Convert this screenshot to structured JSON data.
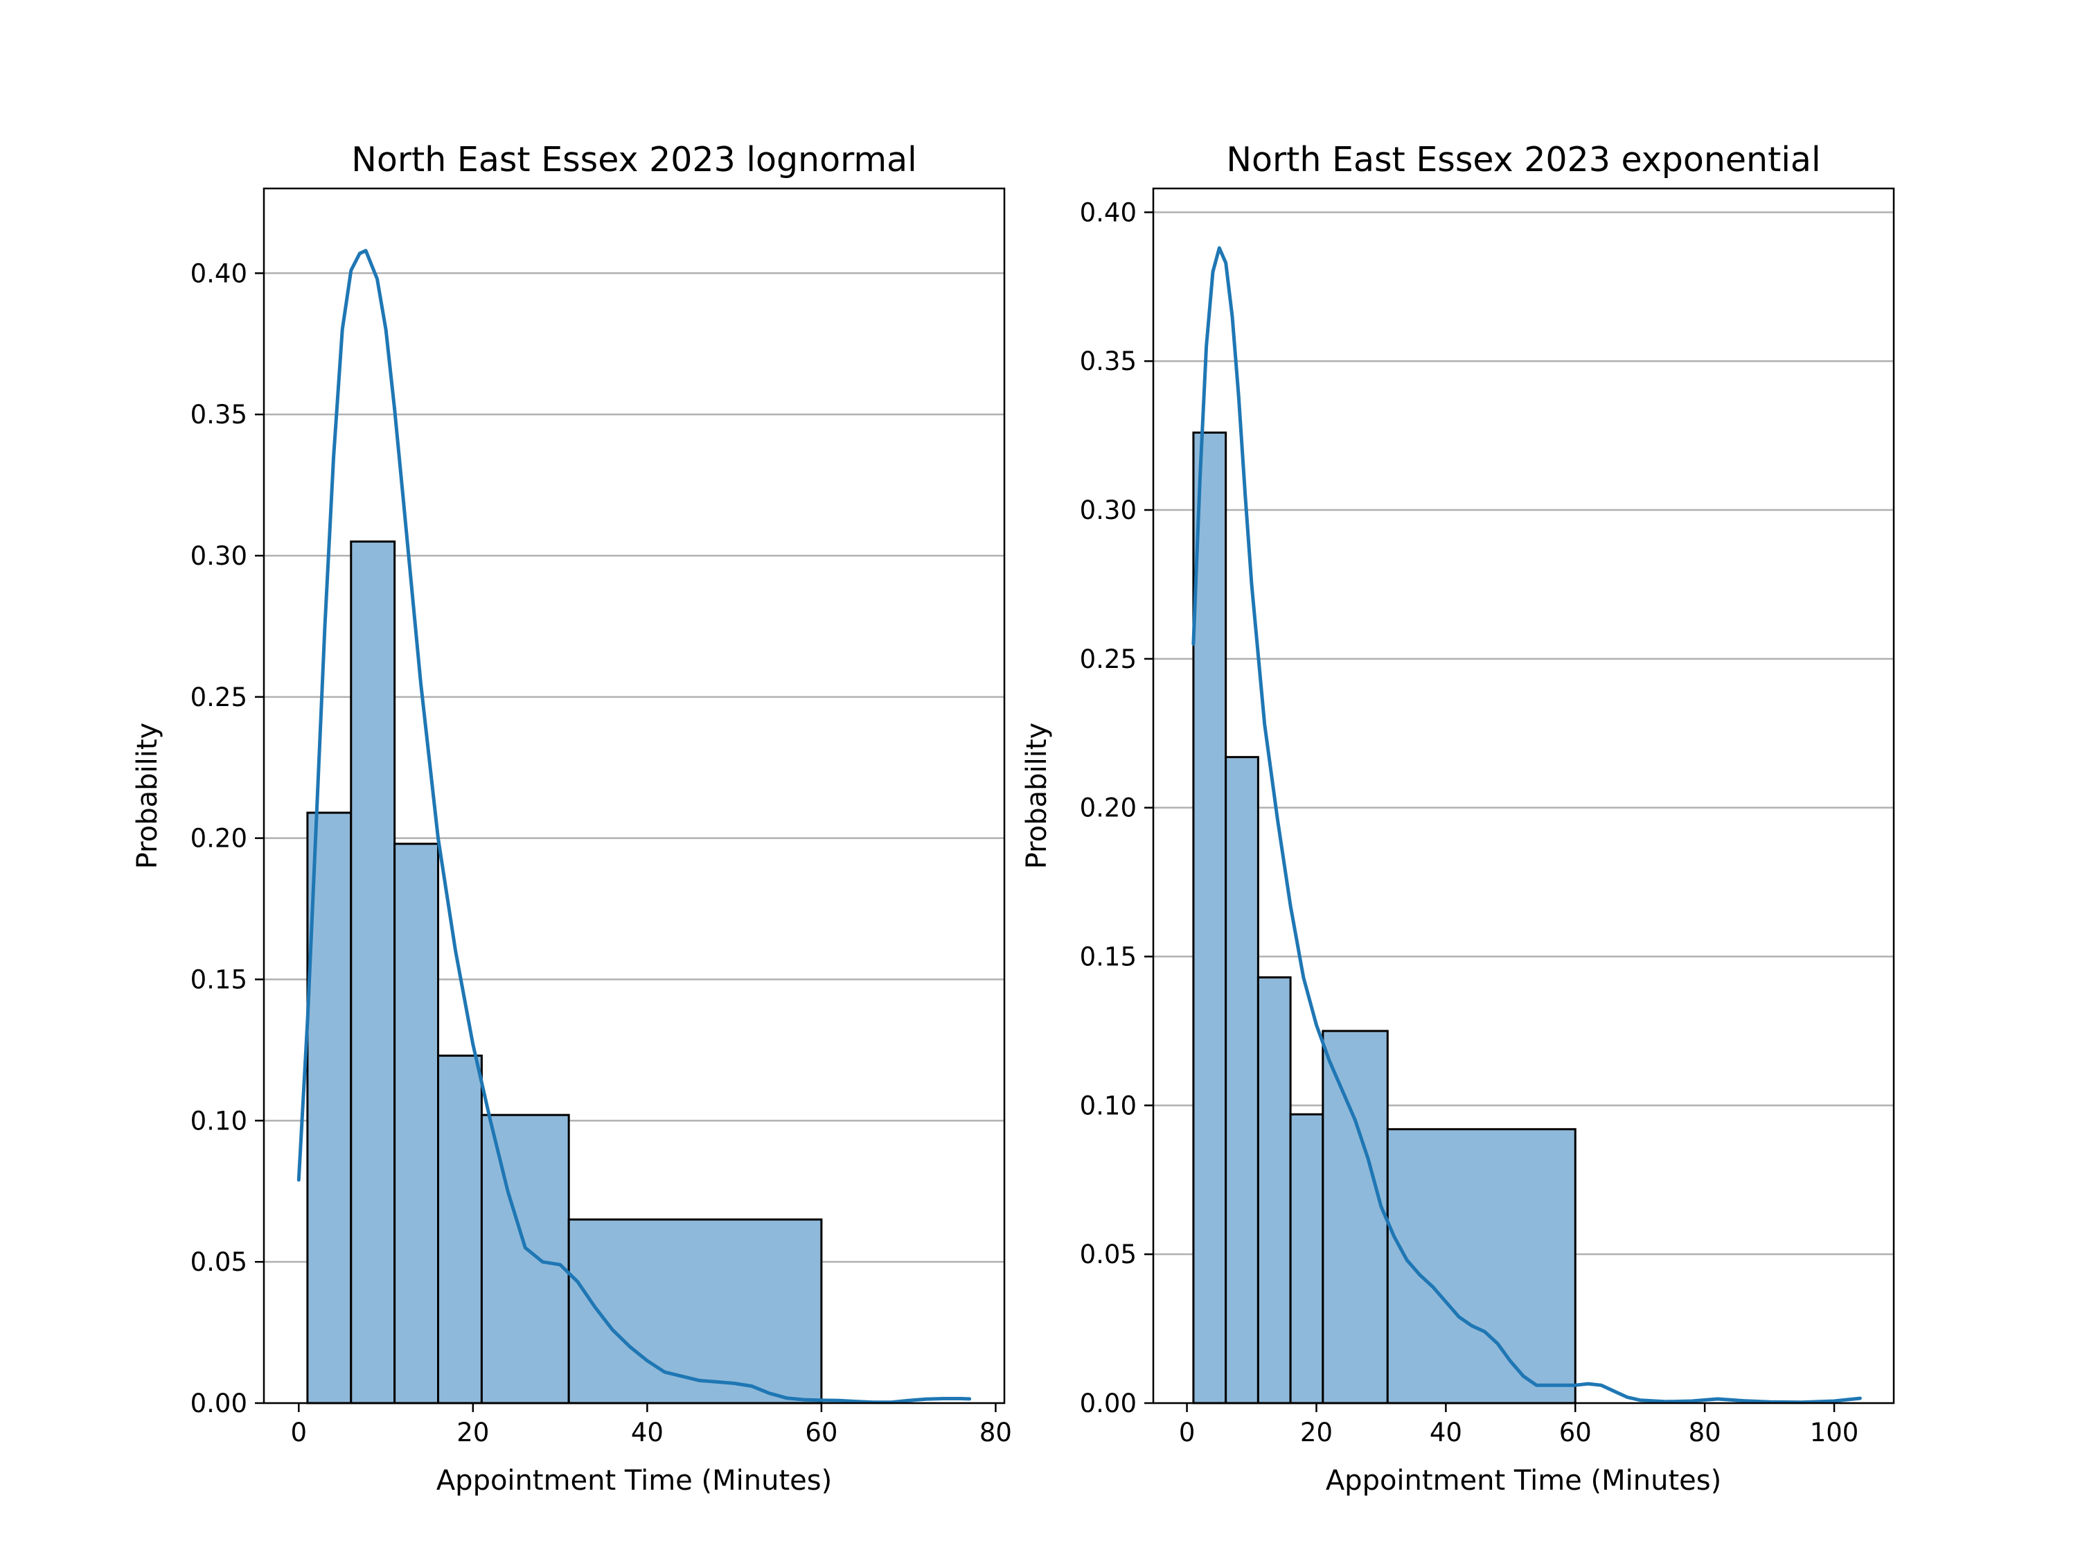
{
  "colors": {
    "bar_fill": "#8fb9da",
    "bar_edge": "#000000",
    "kde_line": "#1f77b4",
    "grid": "#b0b0b0"
  },
  "chart_data": [
    {
      "type": "bar",
      "subtype": "histogram-with-kde",
      "title": "North East Essex 2023 lognormal",
      "xlabel": "Appointment Time (Minutes)",
      "ylabel": "Probability",
      "xlim": [
        -4,
        81
      ],
      "ylim": [
        0,
        0.43
      ],
      "xticks": [
        0,
        20,
        40,
        60,
        80
      ],
      "yticks": [
        0.0,
        0.05,
        0.1,
        0.15,
        0.2,
        0.25,
        0.3,
        0.35,
        0.4
      ],
      "xtick_labels": [
        "0",
        "20",
        "40",
        "60",
        "80"
      ],
      "ytick_labels": [
        "0.00",
        "0.05",
        "0.10",
        "0.15",
        "0.20",
        "0.25",
        "0.30",
        "0.35",
        "0.40"
      ],
      "grid": "horizontal",
      "bins": [
        {
          "start": 1,
          "end": 6,
          "value": 0.209
        },
        {
          "start": 6,
          "end": 11,
          "value": 0.305
        },
        {
          "start": 11,
          "end": 16,
          "value": 0.198
        },
        {
          "start": 16,
          "end": 21,
          "value": 0.123
        },
        {
          "start": 21,
          "end": 31,
          "value": 0.102
        },
        {
          "start": 31,
          "end": 60,
          "value": 0.065
        }
      ],
      "kde": {
        "x": [
          0,
          1,
          2,
          3,
          4,
          5,
          6,
          7,
          7.7,
          9,
          10,
          11,
          12,
          14,
          16,
          18,
          20,
          22,
          24,
          26,
          28,
          30,
          32,
          34,
          36,
          38,
          40,
          42,
          44,
          46,
          48,
          50,
          52,
          54,
          56,
          58,
          60,
          62,
          64,
          66,
          68,
          70,
          72,
          74,
          76,
          77
        ],
        "y": [
          0.079,
          0.135,
          0.205,
          0.275,
          0.335,
          0.38,
          0.401,
          0.407,
          0.408,
          0.398,
          0.38,
          0.352,
          0.32,
          0.255,
          0.2,
          0.16,
          0.127,
          0.1,
          0.075,
          0.055,
          0.05,
          0.049,
          0.043,
          0.034,
          0.026,
          0.02,
          0.015,
          0.011,
          0.0095,
          0.008,
          0.0075,
          0.007,
          0.006,
          0.0035,
          0.0018,
          0.0012,
          0.001,
          0.0009,
          0.0006,
          0.0003,
          0.0003,
          0.0009,
          0.0014,
          0.0016,
          0.0016,
          0.0015
        ]
      }
    },
    {
      "type": "bar",
      "subtype": "histogram-with-kde",
      "title": "North East Essex 2023 exponential",
      "xlabel": "Appointment Time (Minutes)",
      "ylabel": "Probability",
      "xlim": [
        -5.2,
        109.2
      ],
      "ylim": [
        0,
        0.408
      ],
      "xticks": [
        0,
        20,
        40,
        60,
        80,
        100
      ],
      "yticks": [
        0.0,
        0.05,
        0.1,
        0.15,
        0.2,
        0.25,
        0.3,
        0.35,
        0.4
      ],
      "xtick_labels": [
        "0",
        "20",
        "40",
        "60",
        "80",
        "100"
      ],
      "ytick_labels": [
        "0.00",
        "0.05",
        "0.10",
        "0.15",
        "0.20",
        "0.25",
        "0.30",
        "0.35",
        "0.40"
      ],
      "grid": "horizontal",
      "bins": [
        {
          "start": 1,
          "end": 6,
          "value": 0.326
        },
        {
          "start": 6,
          "end": 11,
          "value": 0.217
        },
        {
          "start": 11,
          "end": 16,
          "value": 0.143
        },
        {
          "start": 16,
          "end": 21,
          "value": 0.097
        },
        {
          "start": 21,
          "end": 31,
          "value": 0.125
        },
        {
          "start": 31,
          "end": 60,
          "value": 0.092
        }
      ],
      "kde": {
        "x": [
          1,
          2,
          3,
          4,
          5,
          6,
          7,
          8,
          9,
          10,
          12,
          14,
          16,
          18,
          20,
          22,
          24,
          26,
          28,
          30,
          32,
          34,
          36,
          38,
          40,
          42,
          44,
          46,
          48,
          50,
          52,
          54,
          56,
          58,
          60,
          62,
          64,
          66,
          68,
          70,
          74,
          78,
          82,
          86,
          90,
          95,
          100,
          104
        ],
        "y": [
          0.255,
          0.31,
          0.355,
          0.38,
          0.388,
          0.383,
          0.365,
          0.338,
          0.305,
          0.275,
          0.228,
          0.196,
          0.167,
          0.143,
          0.127,
          0.115,
          0.105,
          0.095,
          0.082,
          0.066,
          0.056,
          0.048,
          0.043,
          0.039,
          0.034,
          0.029,
          0.026,
          0.024,
          0.02,
          0.014,
          0.009,
          0.006,
          0.006,
          0.006,
          0.006,
          0.0065,
          0.006,
          0.004,
          0.002,
          0.001,
          0.0005,
          0.0007,
          0.0014,
          0.0008,
          0.0004,
          0.0003,
          0.0007,
          0.0016
        ]
      }
    }
  ]
}
